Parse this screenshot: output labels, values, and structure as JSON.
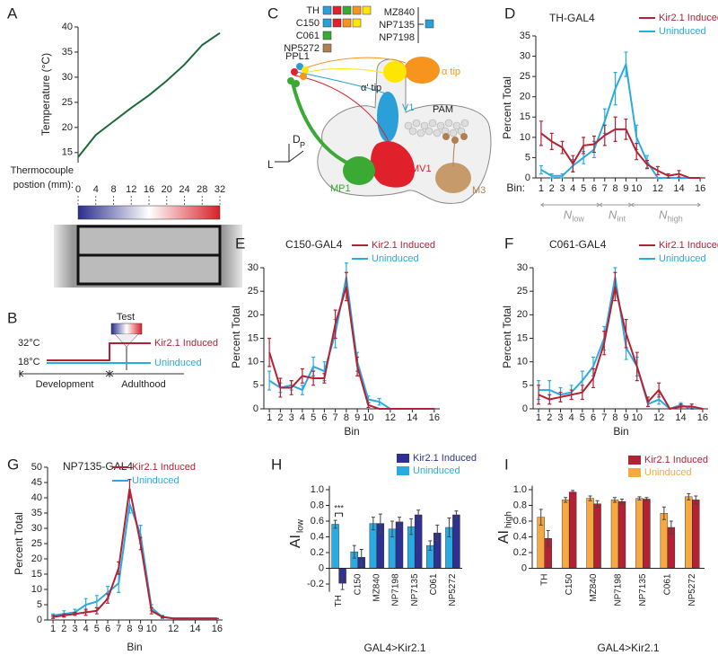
{
  "panels": [
    "A",
    "B",
    "C",
    "D",
    "E",
    "F",
    "G",
    "H",
    "I"
  ],
  "diagram_b": {
    "test": "Test",
    "high_temp": "32°C",
    "low_temp": "18°C",
    "induced": "Kir2.1 Induced",
    "uninduced": "Uninduced",
    "development": "Development",
    "adulthood": "Adulthood",
    "induced_color": "#b22234",
    "uninduced_color": "#29abe2"
  },
  "diagram_c": {
    "lines": [
      {
        "label": "TH",
        "colors": [
          "#2a9fd8",
          "#e0202a",
          "#3aaa35",
          "#f7941d",
          "#ffe600"
        ]
      },
      {
        "label": "C150",
        "colors": [
          "#2a9fd8",
          "#e0202a",
          "#f7941d",
          "#ffe600"
        ]
      },
      {
        "label": "C061",
        "colors": [
          "#3aaa35"
        ]
      },
      {
        "label": "NP5272",
        "colors": [
          "#b08050"
        ]
      }
    ],
    "bracket": [
      "MZ840",
      "NP7135",
      "NP7198"
    ],
    "bracket_color": "#2a9fd8",
    "labels": {
      "ppl1": "PPL1",
      "alpha_tip": "α tip",
      "alpha_prime_tip": "α' tip",
      "v1": "V1",
      "pam": "PAM",
      "mp1": "MP1",
      "mv1": "MV1",
      "m3": "M3"
    },
    "axes": {
      "d": "D",
      "l": "L",
      "p": "P"
    }
  },
  "chart_data": [
    {
      "type": "line",
      "y_label": "Temperature (°C)",
      "x_label": [
        "Thermocouple",
        "postion (mm):"
      ],
      "x": [
        0,
        4,
        8,
        12,
        16,
        20,
        24,
        28,
        32
      ],
      "values": [
        14.1,
        18.5,
        21.2,
        23.9,
        26.4,
        29.3,
        32.5,
        36.4,
        38.8
      ],
      "color": "#1a6b3a",
      "xlim": [
        0,
        32
      ],
      "ylim": [
        13,
        40
      ],
      "xticks": [
        0,
        4,
        8,
        12,
        16,
        20,
        24,
        28,
        32
      ],
      "yticks": [
        15,
        20,
        25,
        30,
        35,
        40
      ]
    },
    {
      "type": "line",
      "title": "TH-GAL4",
      "x_label": "Bin:",
      "y_label": "Percent Total",
      "x": [
        1,
        2,
        3,
        4,
        5,
        6,
        7,
        8,
        9,
        10,
        11,
        12,
        13,
        14,
        15,
        16
      ],
      "series": [
        {
          "name": "Kir2.1 Induced",
          "color": "#b22234",
          "values": [
            11,
            9,
            7.5,
            3.5,
            8,
            8.3,
            10.5,
            12,
            12,
            6.5,
            3.3,
            1.8,
            0.5,
            1,
            0,
            0
          ],
          "errors": [
            3,
            2,
            1.5,
            2,
            2,
            2,
            2.5,
            3,
            2.5,
            2,
            1,
            1,
            0.5,
            0.8,
            0,
            0
          ]
        },
        {
          "name": "Uninduced",
          "color": "#29abe2",
          "values": [
            2,
            0.5,
            0.5,
            3,
            5,
            7,
            14,
            22,
            28,
            10,
            4,
            0,
            0,
            0,
            0,
            0
          ],
          "errors": [
            1,
            0.5,
            0.5,
            1.5,
            1.5,
            2,
            3,
            4,
            3,
            3,
            1.5,
            0,
            0,
            0,
            0,
            0
          ]
        }
      ],
      "xlim": [
        0.5,
        16.5
      ],
      "ylim": [
        0,
        35
      ],
      "xticks": [
        1,
        2,
        3,
        4,
        5,
        6,
        7,
        8,
        9,
        10,
        12,
        14,
        16
      ],
      "yticks": [
        0,
        5,
        10,
        15,
        20,
        25,
        30,
        35
      ],
      "legend": "upper right",
      "bin_groups": [
        {
          "label": "N",
          "sub": "low"
        },
        {
          "label": "N",
          "sub": "int"
        },
        {
          "label": "N",
          "sub": "high"
        }
      ]
    },
    {
      "type": "line",
      "title": "C150-GAL4",
      "x_label": "Bin",
      "y_label": "Percent Total",
      "x": [
        1,
        2,
        3,
        4,
        5,
        6,
        7,
        8,
        9,
        10,
        11,
        12,
        13,
        14,
        15,
        16
      ],
      "series": [
        {
          "name": "Kir2.1 Induced",
          "color": "#b22234",
          "values": [
            12,
            4.5,
            4.5,
            7,
            6.5,
            6.5,
            18,
            26,
            9,
            0.8,
            0,
            0,
            0,
            0,
            0,
            0
          ],
          "errors": [
            3,
            2,
            1.5,
            1.5,
            1.5,
            1,
            3,
            3,
            2,
            0.5,
            0,
            0,
            0,
            0,
            0,
            0
          ]
        },
        {
          "name": "Uninduced",
          "color": "#29abe2",
          "values": [
            6,
            4.5,
            5,
            4,
            9,
            8,
            16,
            28,
            10,
            2,
            1.5,
            0,
            0,
            0,
            0,
            0
          ],
          "errors": [
            2,
            1,
            1,
            1,
            2,
            2,
            3,
            3,
            2,
            0.7,
            0.7,
            0,
            0,
            0,
            0,
            0
          ]
        }
      ],
      "xlim": [
        0.5,
        16.5
      ],
      "ylim": [
        0,
        30
      ],
      "xticks": [
        1,
        2,
        3,
        4,
        5,
        6,
        7,
        8,
        9,
        10,
        12,
        14,
        16
      ],
      "yticks": [
        0,
        5,
        10,
        15,
        20,
        25,
        30
      ],
      "legend": "upper right"
    },
    {
      "type": "line",
      "title": "C061-GAL4",
      "x_label": "Bin",
      "y_label": "Percent Total",
      "x": [
        1,
        2,
        3,
        4,
        5,
        6,
        7,
        8,
        9,
        10,
        11,
        12,
        13,
        14,
        15,
        16
      ],
      "series": [
        {
          "name": "Kir2.1 Induced",
          "color": "#b22234",
          "values": [
            3,
            2,
            2.5,
            3,
            3.5,
            6.5,
            14,
            26,
            16,
            9,
            1.5,
            4,
            0,
            0.5,
            0.5,
            0
          ],
          "errors": [
            2,
            1,
            1,
            1,
            1.5,
            2,
            2.5,
            3,
            3,
            3,
            1,
            1.5,
            0,
            0.5,
            0.5,
            0
          ]
        },
        {
          "name": "Uninduced",
          "color": "#29abe2",
          "values": [
            4,
            4,
            3,
            3.5,
            6,
            9,
            15,
            28,
            13,
            9,
            1,
            2,
            0,
            0.8,
            0,
            0
          ],
          "errors": [
            2,
            2,
            1.5,
            1.5,
            2,
            2,
            2.5,
            2,
            2.5,
            2,
            0.5,
            1,
            0,
            0.5,
            0,
            0
          ]
        }
      ],
      "xlim": [
        0.5,
        16.5
      ],
      "ylim": [
        0,
        30
      ],
      "xticks": [
        1,
        2,
        3,
        4,
        5,
        6,
        7,
        8,
        9,
        10,
        12,
        14,
        16
      ],
      "yticks": [
        0,
        5,
        10,
        15,
        20,
        25,
        30
      ],
      "legend": "upper right"
    },
    {
      "type": "line",
      "title": "NP7135-GAL4",
      "x_label": "Bin",
      "y_label": "Percent Total",
      "x": [
        1,
        2,
        3,
        4,
        5,
        6,
        7,
        8,
        9,
        10,
        11,
        12,
        13,
        14,
        15,
        16
      ],
      "series": [
        {
          "name": "Kir2.1 Induced",
          "color": "#b22234",
          "values": [
            1,
            1.5,
            2,
            2.5,
            3,
            7,
            17,
            43,
            25,
            3,
            1,
            0.5,
            0.5,
            0.5,
            0.5,
            0.5
          ],
          "errors": [
            0.5,
            0.5,
            0.5,
            1,
            1,
            1.5,
            2,
            3,
            2,
            1,
            0.3,
            0,
            0,
            0,
            0,
            0
          ]
        },
        {
          "name": "Uninduced",
          "color": "#29abe2",
          "values": [
            1.5,
            2,
            2.5,
            5,
            6,
            9,
            12,
            38,
            28,
            4,
            1,
            0.5,
            0.5,
            0.5,
            0.5,
            0.5
          ],
          "errors": [
            0.5,
            1,
            1,
            2,
            2,
            2,
            3,
            3,
            3,
            1,
            0.5,
            0,
            0,
            0,
            0,
            0
          ]
        }
      ],
      "xlim": [
        0.5,
        16.5
      ],
      "ylim": [
        0,
        50
      ],
      "xticks": [
        1,
        2,
        3,
        4,
        5,
        6,
        7,
        8,
        9,
        10,
        12,
        14,
        16
      ],
      "yticks": [
        0,
        5,
        10,
        15,
        20,
        25,
        30,
        35,
        40,
        45,
        50
      ],
      "legend": "upper right"
    },
    {
      "type": "bar",
      "y_label": "AI",
      "y_label_sub": "low",
      "x_label": "GAL4>Kir2.1",
      "categories": [
        "TH",
        "C150",
        "MZ840",
        "NP7198",
        "NP7135",
        "C061",
        "NP5272"
      ],
      "series": [
        {
          "name": "Kir2.1 Induced",
          "color": "#2e3192",
          "values": [
            -0.19,
            0.14,
            0.57,
            0.59,
            0.68,
            0.45,
            0.68
          ],
          "errors": [
            0.08,
            0.1,
            0.12,
            0.06,
            0.06,
            0.1,
            0.05
          ]
        },
        {
          "name": "Uninduced",
          "color": "#29abe2",
          "values": [
            0.56,
            0.21,
            0.57,
            0.5,
            0.53,
            0.29,
            0.52
          ],
          "errors": [
            0.05,
            0.08,
            0.08,
            0.1,
            0.1,
            0.06,
            0.12
          ]
        }
      ],
      "ylim": [
        -0.3,
        1.05
      ],
      "yticks": [
        -0.2,
        0,
        0.2,
        0.4,
        0.6,
        0.8,
        {
          "value": 1,
          "label": "1.0"
        }
      ],
      "annotation": "***",
      "legend": "upper right"
    },
    {
      "type": "bar",
      "y_label": "AI",
      "y_label_sub": "high",
      "x_label": "GAL4>Kir2.1",
      "categories": [
        "TH",
        "C150",
        "MZ840",
        "NP7198",
        "NP7135",
        "C061",
        "NP5272"
      ],
      "series": [
        {
          "name": "Kir2.1 Induced",
          "color": "#b22234",
          "values": [
            0.38,
            0.97,
            0.82,
            0.85,
            0.88,
            0.52,
            0.87
          ],
          "errors": [
            0.1,
            0.02,
            0.04,
            0.03,
            0.02,
            0.08,
            0.05
          ]
        },
        {
          "name": "Uninduced",
          "color": "#f7a941",
          "values": [
            0.65,
            0.87,
            0.89,
            0.87,
            0.89,
            0.7,
            0.91
          ],
          "errors": [
            0.1,
            0.03,
            0.03,
            0.03,
            0.02,
            0.08,
            0.04
          ]
        }
      ],
      "ylim": [
        0,
        1.05
      ],
      "yticks": [
        0,
        0.2,
        0.4,
        0.6,
        0.8,
        {
          "value": 1,
          "label": "1.0"
        }
      ],
      "legend": "upper right"
    }
  ]
}
